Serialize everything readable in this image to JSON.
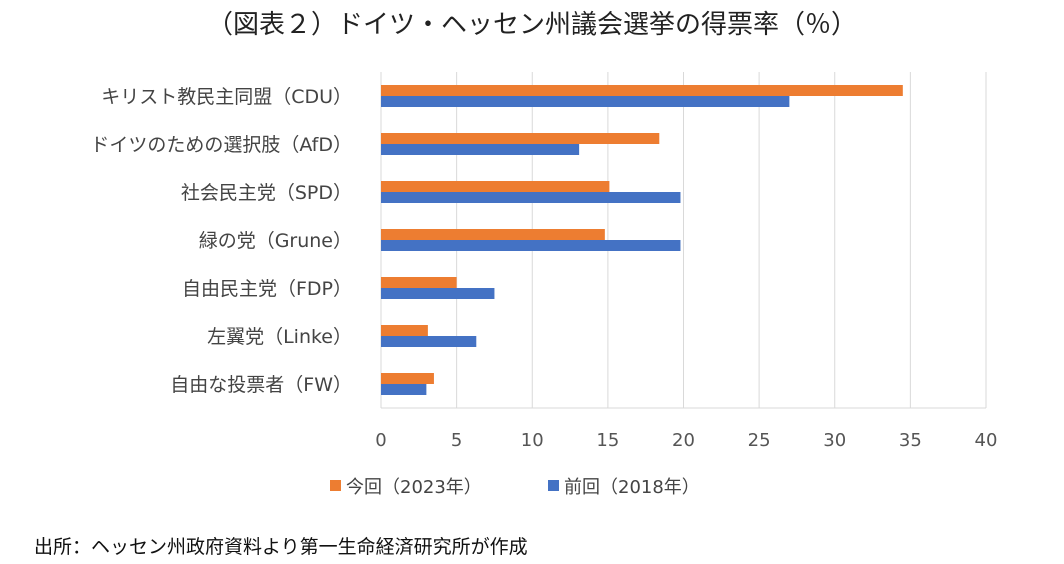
{
  "chart_data": {
    "type": "bar",
    "orientation": "horizontal",
    "title": "（図表２）ドイツ・ヘッセン州議会選挙の得票率（％）",
    "categories": [
      "キリスト教民主同盟（CDU）",
      "ドイツのための選択肢（AfD）",
      "社会民主党（SPD）",
      "緑の党（Grune）",
      "自由民主党（FDP）",
      "左翼党（Linke）",
      "自由な投票者（FW）"
    ],
    "series": [
      {
        "name": "今回（2023年）",
        "color": "#ED7D31",
        "values": [
          34.5,
          18.4,
          15.1,
          14.8,
          5.0,
          3.1,
          3.5
        ]
      },
      {
        "name": "前回（2018年）",
        "color": "#4472C4",
        "values": [
          27.0,
          13.1,
          19.8,
          19.8,
          7.5,
          6.3,
          3.0
        ]
      }
    ],
    "xlim": [
      0,
      40
    ],
    "xticks": [
      "0",
      "5",
      "10",
      "15",
      "20",
      "25",
      "30",
      "35",
      "40"
    ],
    "grid": true,
    "legend": "bottom",
    "source": "出所：ヘッセン州政府資料より第一生命経済研究所が作成"
  }
}
